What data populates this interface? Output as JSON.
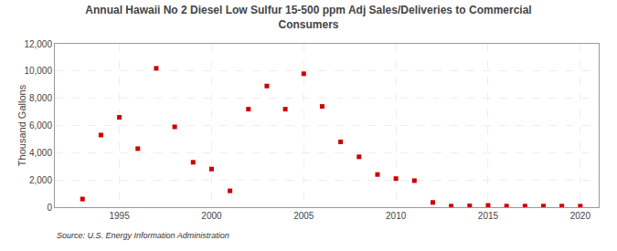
{
  "chart_data": {
    "type": "scatter",
    "title": "Annual Hawaii No 2 Diesel Low Sulfur 15-500 ppm Adj Sales/Deliveries to Commercial\nConsumers",
    "y_label": "Thousand Gallons",
    "annotations": [
      "Source: U.S. Energy Information Administration"
    ],
    "x": [
      1993,
      1994,
      1995,
      1996,
      1997,
      1998,
      1999,
      2000,
      2001,
      2002,
      2003,
      2004,
      2005,
      2006,
      2007,
      2008,
      2009,
      2010,
      2011,
      2012,
      2013,
      2014,
      2015,
      2016,
      2017,
      2018,
      2019,
      2020
    ],
    "values": [
      600,
      5300,
      6600,
      4300,
      10200,
      5900,
      3300,
      2800,
      1200,
      7200,
      8900,
      7200,
      9800,
      7400,
      4800,
      3700,
      2400,
      2100,
      1950,
      350,
      80,
      100,
      130,
      80,
      80,
      80,
      80,
      80
    ],
    "color": "#cc0000",
    "marker": "square",
    "xlim": [
      1991.5,
      2021
    ],
    "ylim": [
      0,
      12000
    ],
    "xticks": [
      1995,
      2000,
      2005,
      2010,
      2015,
      2020
    ],
    "yticks": [
      0,
      {
        "value": 2000,
        "label": "2,000"
      },
      {
        "value": 4000,
        "label": "4,000"
      },
      {
        "value": 6000,
        "label": "6,000"
      },
      {
        "value": 8000,
        "label": "8,000"
      },
      {
        "value": 10000,
        "label": "10,000"
      },
      {
        "value": 12000,
        "label": "12,000"
      }
    ],
    "grid": true
  }
}
